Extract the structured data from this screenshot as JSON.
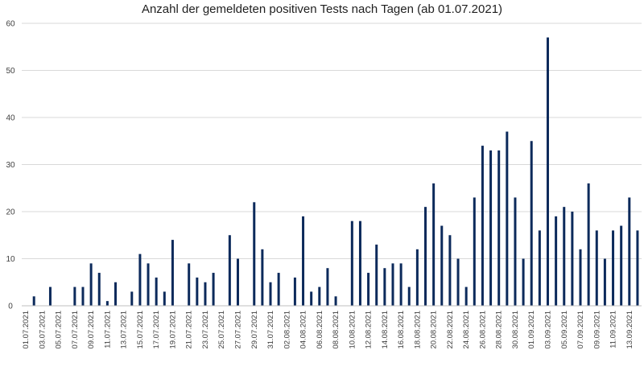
{
  "chart_data": {
    "type": "bar",
    "title": "Anzahl der gemeldeten positiven Tests nach Tagen (ab 01.07.2021)",
    "xlabel": "",
    "ylabel": "",
    "ylim": [
      0,
      60
    ],
    "yticks": [
      0,
      10,
      20,
      30,
      40,
      50,
      60
    ],
    "grid": true,
    "bar_color": "#0c2a5b",
    "categories": [
      "01.07.2021",
      "02.07.2021",
      "03.07.2021",
      "04.07.2021",
      "05.07.2021",
      "06.07.2021",
      "07.07.2021",
      "08.07.2021",
      "09.07.2021",
      "10.07.2021",
      "11.07.2021",
      "12.07.2021",
      "13.07.2021",
      "14.07.2021",
      "15.07.2021",
      "16.07.2021",
      "17.07.2021",
      "18.07.2021",
      "19.07.2021",
      "20.07.2021",
      "21.07.2021",
      "22.07.2021",
      "23.07.2021",
      "24.07.2021",
      "25.07.2021",
      "26.07.2021",
      "27.07.2021",
      "28.07.2021",
      "29.07.2021",
      "30.07.2021",
      "31.07.2021",
      "01.08.2021",
      "02.08.2021",
      "03.08.2021",
      "04.08.2021",
      "05.08.2021",
      "06.08.2021",
      "07.08.2021",
      "08.08.2021",
      "09.08.2021",
      "10.08.2021",
      "11.08.2021",
      "12.08.2021",
      "13.08.2021",
      "14.08.2021",
      "15.08.2021",
      "16.08.2021",
      "17.08.2021",
      "18.08.2021",
      "19.08.2021",
      "20.08.2021",
      "21.08.2021",
      "22.08.2021",
      "23.08.2021",
      "24.08.2021",
      "25.08.2021",
      "26.08.2021",
      "27.08.2021",
      "28.08.2021",
      "29.08.2021",
      "30.08.2021",
      "31.08.2021",
      "01.09.2021",
      "02.09.2021",
      "03.09.2021",
      "04.09.2021",
      "05.09.2021",
      "06.09.2021",
      "07.09.2021",
      "08.09.2021",
      "09.09.2021",
      "10.09.2021",
      "11.09.2021",
      "12.09.2021",
      "13.09.2021",
      "14.09.2021"
    ],
    "visible_tick_labels": [
      "01.07.2021",
      "03.07.2021",
      "05.07.2021",
      "07.07.2021",
      "09.07.2021",
      "11.07.2021",
      "13.07.2021",
      "15.07.2021",
      "17.07.2021",
      "19.07.2021",
      "21.07.2021",
      "23.07.2021",
      "25.07.2021",
      "27.07.2021",
      "29.07.2021",
      "31.07.2021",
      "02.08.2021",
      "04.08.2021",
      "06.08.2021",
      "08.08.2021",
      "10.08.2021",
      "12.08.2021",
      "14.08.2021",
      "16.08.2021",
      "18.08.2021",
      "20.08.2021",
      "22.08.2021",
      "24.08.2021",
      "26.08.2021",
      "28.08.2021",
      "30.08.2021",
      "01.09.2021",
      "03.09.2021",
      "05.09.2021",
      "07.09.2021",
      "09.09.2021",
      "11.09.2021",
      "13.09.2021"
    ],
    "values": [
      0,
      2,
      0,
      4,
      0,
      0,
      4,
      4,
      9,
      7,
      1,
      5,
      0,
      3,
      11,
      9,
      6,
      3,
      14,
      0,
      9,
      6,
      5,
      7,
      0,
      15,
      10,
      0,
      22,
      12,
      5,
      7,
      0,
      6,
      19,
      3,
      4,
      8,
      2,
      0,
      18,
      18,
      7,
      13,
      8,
      9,
      9,
      4,
      12,
      21,
      26,
      17,
      15,
      10,
      4,
      23,
      34,
      33,
      33,
      37,
      23,
      10,
      35,
      16,
      57,
      19,
      21,
      20,
      12,
      26,
      16,
      10,
      16,
      17,
      23,
      16
    ]
  }
}
